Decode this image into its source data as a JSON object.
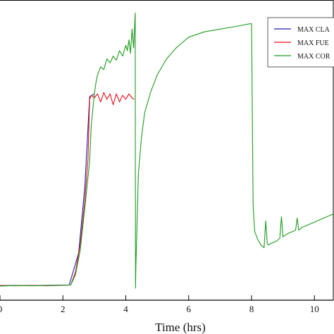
{
  "chart_data": {
    "type": "line",
    "xlabel": "Time (hrs)",
    "ylabel": "",
    "xlim": [
      0,
      10.6
    ],
    "ylim": [
      0,
      1000
    ],
    "xticks": [
      0,
      2,
      4,
      6,
      8,
      10
    ],
    "legend_position": "top-right",
    "grid": false,
    "series": [
      {
        "name": "MAX CLA",
        "color": "#1f1fb4",
        "x": [
          0,
          1.2,
          2.2,
          2.5,
          2.7,
          2.85,
          3.0
        ],
        "y": [
          10,
          10,
          12,
          130,
          380,
          710,
          720
        ]
      },
      {
        "name": "MAX FUE",
        "color": "#e3111b",
        "x": [
          0,
          0.5,
          1.0,
          1.5,
          2.0,
          2.25,
          2.4,
          2.55,
          2.7,
          2.8,
          2.85,
          2.9,
          3.0,
          3.1,
          3.2,
          3.3,
          3.4,
          3.5,
          3.6,
          3.7,
          3.8,
          3.9,
          4.0,
          4.1,
          4.2,
          4.27
        ],
        "y": [
          10,
          9,
          10,
          9,
          11,
          12,
          60,
          160,
          330,
          480,
          700,
          715,
          705,
          720,
          690,
          725,
          700,
          720,
          680,
          720,
          690,
          715,
          700,
          720,
          705,
          700
        ]
      },
      {
        "name": "MAX COR",
        "color": "#1e9a1e",
        "x": [
          0,
          0.5,
          1.0,
          1.5,
          2.0,
          2.25,
          2.4,
          2.55,
          2.7,
          2.85,
          2.9,
          3.0,
          3.05,
          3.1,
          3.2,
          3.3,
          3.4,
          3.5,
          3.6,
          3.7,
          3.8,
          3.9,
          4.0,
          4.05,
          4.1,
          4.15,
          4.2,
          4.25,
          4.3,
          4.31,
          4.32,
          4.35,
          4.4,
          4.5,
          4.6,
          4.8,
          5.0,
          5.3,
          5.6,
          6.0,
          6.5,
          7.0,
          7.5,
          7.95,
          8.0,
          8.05,
          8.1,
          8.2,
          8.3,
          8.4,
          8.45,
          8.5,
          8.55,
          8.6,
          8.8,
          8.9,
          8.95,
          9.0,
          9.05,
          9.2,
          9.4,
          9.45,
          9.5,
          9.6,
          9.8,
          10.0,
          10.3,
          10.6
        ],
        "y": [
          8,
          10,
          9,
          10,
          11,
          12,
          50,
          140,
          300,
          470,
          600,
          720,
          760,
          790,
          820,
          810,
          850,
          835,
          860,
          845,
          880,
          860,
          900,
          880,
          920,
          870,
          960,
          890,
          1020,
          0,
          80,
          200,
          420,
          560,
          650,
          730,
          790,
          850,
          890,
          930,
          950,
          960,
          970,
          980,
          980,
          310,
          210,
          180,
          160,
          150,
          250,
          165,
          160,
          165,
          175,
          185,
          265,
          190,
          195,
          205,
          215,
          260,
          215,
          225,
          235,
          245,
          260,
          275
        ]
      }
    ]
  }
}
